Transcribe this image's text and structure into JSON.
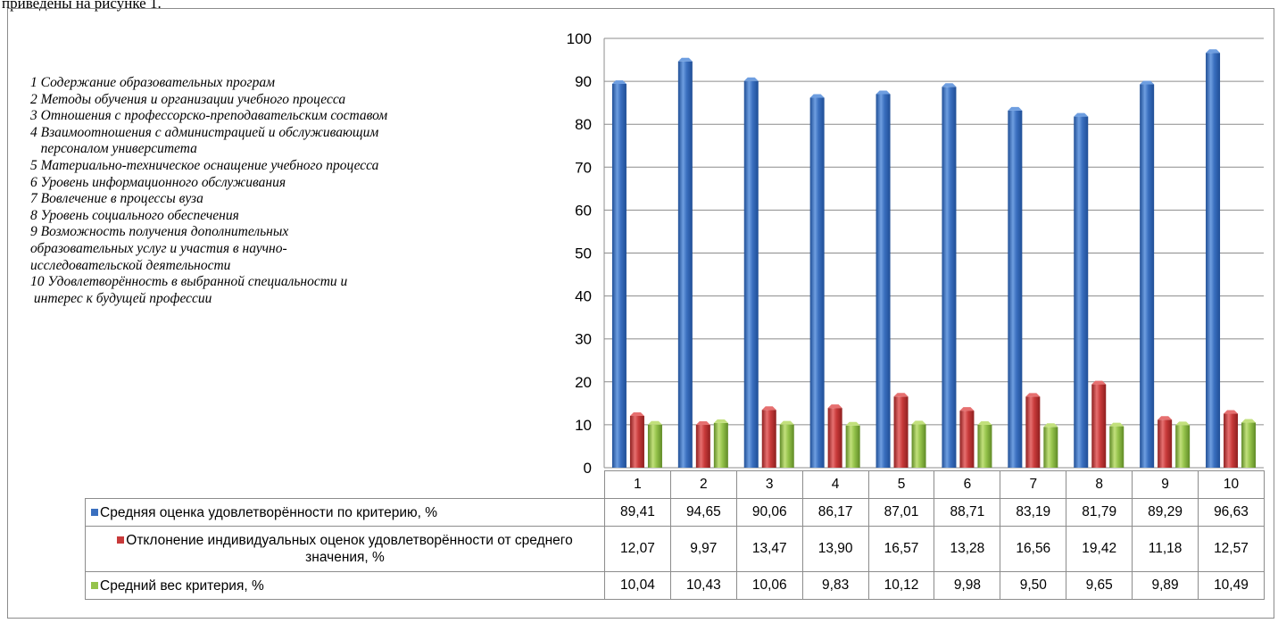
{
  "caption": "приведены на рисунке 1.",
  "chart_data": {
    "type": "bar",
    "categories": [
      "1",
      "2",
      "3",
      "4",
      "5",
      "6",
      "7",
      "8",
      "9",
      "10"
    ],
    "ylim": [
      0,
      100
    ],
    "yticks": [
      "0",
      "10",
      "20",
      "30",
      "40",
      "50",
      "60",
      "70",
      "80",
      "90",
      "100"
    ],
    "grid": true,
    "legend_placement": "table-left",
    "series": [
      {
        "name": "Средняя оценка удовлетворённости по критерию, %",
        "color": "#3a6fbf",
        "values": [
          89.41,
          94.65,
          90.06,
          86.17,
          87.01,
          88.71,
          83.19,
          81.79,
          89.29,
          96.63
        ],
        "labels": [
          "89,41",
          "94,65",
          "90,06",
          "86,17",
          "87,01",
          "88,71",
          "83,19",
          "81,79",
          "89,29",
          "96,63"
        ]
      },
      {
        "name": "Отклонение индивидуальных оценок удовлетворённости от среднего значения, %",
        "color": "#c83a3a",
        "values": [
          12.07,
          9.97,
          13.47,
          13.9,
          16.57,
          13.28,
          16.56,
          19.42,
          11.18,
          12.57
        ],
        "labels": [
          "12,07",
          "9,97",
          "13,47",
          "13,90",
          "16,57",
          "13,28",
          "16,56",
          "19,42",
          "11,18",
          "12,57"
        ]
      },
      {
        "name": "Средний  вес критерия, %",
        "color": "#95c34b",
        "values": [
          10.04,
          10.43,
          10.06,
          9.83,
          10.12,
          9.98,
          9.5,
          9.65,
          9.89,
          10.49
        ],
        "labels": [
          "10,04",
          "10,43",
          "10,06",
          "9,83",
          "10,12",
          "9,98",
          "9,50",
          "9,65",
          "9,89",
          "10,49"
        ]
      }
    ],
    "annotations": [
      "1 Содержание образовательных програм",
      "2 Методы обучения и организации учебного процесса",
      "3 Отношения с профессорско-преподавательским составом",
      "4 Взаимоотношения с администрацией и обслуживающим",
      "   персоналом университета",
      "5 Материально-техническое оснащение учебного процесса",
      "6 Уровень информационного обслуживания",
      "7 Вовлечение в процессы вуза",
      "8 Уровень социального обеспечения",
      "9 Возможность получения дополнительных",
      "образовательных услуг и участия в научно-",
      "исследовательской деятельности",
      "10 Удовлетворённость в выбранной специальности и",
      " интерес к будущей профессии"
    ]
  }
}
